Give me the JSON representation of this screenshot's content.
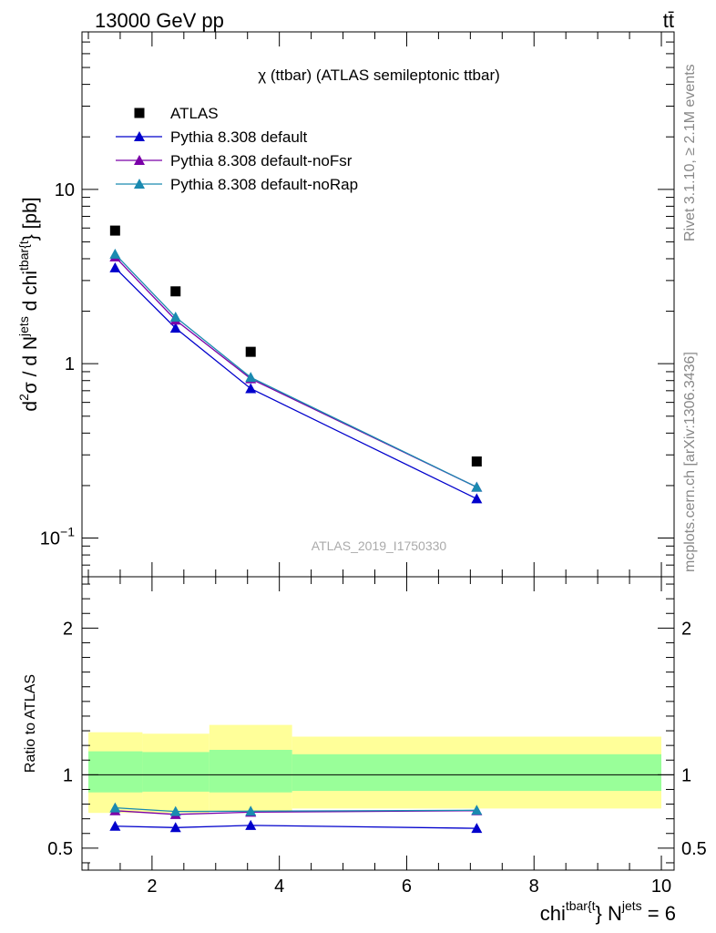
{
  "header": {
    "left": "13000 GeV pp",
    "right": "tt̄"
  },
  "side_labels": {
    "rivet": "Rivet 3.1.10, ≥ 2.1M events",
    "mcplots": "mcplots.cern.ch [arXiv:1306.3436]"
  },
  "colors": {
    "atlas": "#000000",
    "default": "#0000cc",
    "noFsr": "#7a00a8",
    "noRap": "#1a8ab0",
    "band_outer": "#ffff99",
    "band_inner": "#99ff99"
  },
  "chart_data": [
    {
      "type": "scatter",
      "title": "χ (ttbar) (ATLAS semileptonic ttbar)",
      "ylabel": "d²σ / d N^jets d chi^tbar{t} [pb]",
      "ylabel_parts": {
        "a": "d",
        "a_sup": "2",
        "b": "σ /  d N",
        "b_sup": "jets",
        "c": " d chi",
        "c_sup": "tbar{t",
        "d": "} [pb]"
      },
      "yscale": "log",
      "ylim": [
        0.06,
        80
      ],
      "yticks": [
        {
          "value": 0.1,
          "base": "10",
          "exp": "−1"
        },
        {
          "value": 1,
          "label": "1"
        },
        {
          "value": 10,
          "label": "10"
        }
      ],
      "xlim": [
        0.9,
        10.2
      ],
      "watermark": "ATLAS_2019_I1750330",
      "legend_position": "top-left",
      "series": [
        {
          "name": "ATLAS",
          "marker": "square",
          "x": [
            1.42,
            2.37,
            3.55,
            7.1
          ],
          "y": [
            5.8,
            2.6,
            1.17,
            0.275
          ]
        },
        {
          "name": "Pythia 8.308 default",
          "marker": "triangle",
          "x": [
            1.42,
            2.37,
            3.55,
            7.1
          ],
          "y": [
            3.55,
            1.6,
            0.72,
            0.168
          ]
        },
        {
          "name": "Pythia 8.308 default-noFsr",
          "marker": "triangle",
          "x": [
            1.42,
            2.37,
            3.55,
            7.1
          ],
          "y": [
            4.1,
            1.78,
            0.82,
            0.196
          ]
        },
        {
          "name": "Pythia 8.308 default-noRap",
          "marker": "triangle",
          "x": [
            1.42,
            2.37,
            3.55,
            7.1
          ],
          "y": [
            4.25,
            1.85,
            0.835,
            0.196
          ]
        }
      ]
    },
    {
      "type": "line",
      "ylabel": "Ratio to ATLAS",
      "ylim": [
        0.35,
        2.35
      ],
      "yticks": [
        0.5,
        1,
        2
      ],
      "ytick_labels": [
        "0.5",
        "1",
        "2"
      ],
      "xlim": [
        0.9,
        10.2
      ],
      "xticks": [
        2,
        4,
        6,
        8,
        10
      ],
      "xtick_labels": [
        "2",
        "4",
        "6",
        "8",
        "10"
      ],
      "xlabel_parts": {
        "a": "chi",
        "a_sup": "tbar{t",
        "b": "} N",
        "b_sup": "jets",
        "c": " = 6"
      },
      "bands": [
        {
          "x0": 1.0,
          "x1": 1.85,
          "outer": [
            0.74,
            1.29
          ],
          "inner": [
            0.88,
            1.16
          ]
        },
        {
          "x0": 1.85,
          "x1": 2.9,
          "outer": [
            0.74,
            1.28
          ],
          "inner": [
            0.885,
            1.155
          ]
        },
        {
          "x0": 2.9,
          "x1": 4.2,
          "outer": [
            0.75,
            1.34
          ],
          "inner": [
            0.88,
            1.17
          ]
        },
        {
          "x0": 4.2,
          "x1": 10.0,
          "outer": [
            0.77,
            1.26
          ],
          "inner": [
            0.89,
            1.14
          ]
        }
      ],
      "series": [
        {
          "name": "Pythia 8.308 default",
          "x": [
            1.42,
            2.37,
            3.55,
            7.1
          ],
          "y": [
            0.65,
            0.64,
            0.655,
            0.635
          ]
        },
        {
          "name": "Pythia 8.308 default-noFsr",
          "x": [
            1.42,
            2.37,
            3.55,
            7.1
          ],
          "y": [
            0.755,
            0.73,
            0.745,
            0.755
          ]
        },
        {
          "name": "Pythia 8.308 default-noRap",
          "x": [
            1.42,
            2.37,
            3.55,
            7.1
          ],
          "y": [
            0.775,
            0.75,
            0.752,
            0.758
          ]
        }
      ]
    }
  ]
}
